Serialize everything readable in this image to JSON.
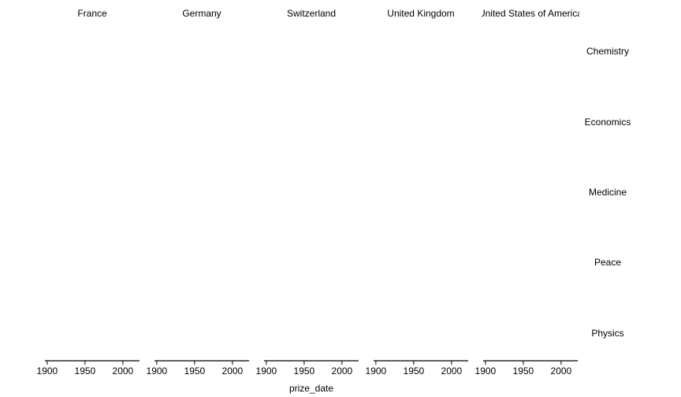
{
  "chart_data": {
    "type": "scatter",
    "facet_columns": [
      "France",
      "Germany",
      "Switzerland",
      "United Kingdom",
      "United States of America"
    ],
    "facet_rows": [
      "Chemistry",
      "Economics",
      "Medicine",
      "Peace",
      "Physics"
    ],
    "xlabel": "prize_date",
    "ylabel": "",
    "xlim": [
      1897,
      2022
    ],
    "x_ticks": [
      "1900",
      "1950",
      "2000"
    ],
    "x_tick_values": [
      1900,
      1950,
      2000
    ],
    "series": [],
    "grid": false
  }
}
